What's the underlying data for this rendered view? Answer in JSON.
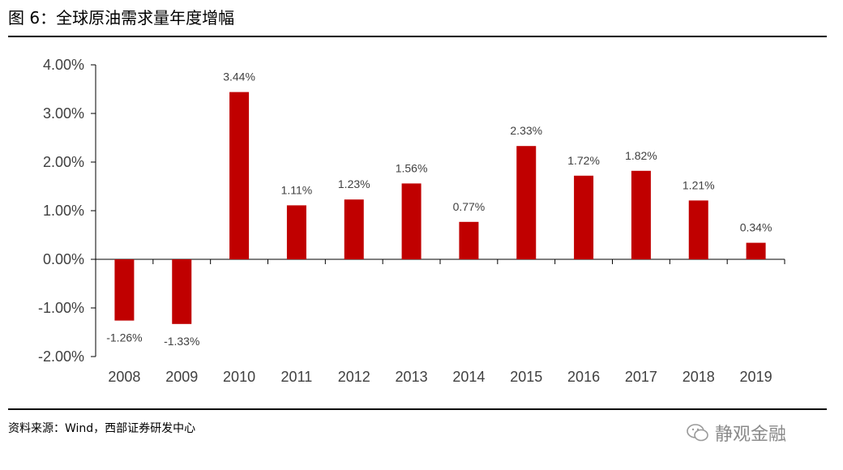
{
  "header": {
    "title": "图 6：全球原油需求量年度增幅"
  },
  "footer": {
    "source": "资料来源：Wind，西部证券研发中心"
  },
  "watermark": {
    "text": "静观金融",
    "icon": "wechat-icon"
  },
  "colors": {
    "bar": "#c00000",
    "axis": "#000000",
    "text": "#404040"
  },
  "chart_data": {
    "type": "bar",
    "title": "全球原油需求量年度增幅",
    "categories": [
      "2008",
      "2009",
      "2010",
      "2011",
      "2012",
      "2013",
      "2014",
      "2015",
      "2016",
      "2017",
      "2018",
      "2019"
    ],
    "values": [
      -1.26,
      -1.33,
      3.44,
      1.11,
      1.23,
      1.56,
      0.77,
      2.33,
      1.72,
      1.82,
      1.21,
      0.34
    ],
    "value_labels": [
      "-1.26%",
      "-1.33%",
      "3.44%",
      "1.11%",
      "1.23%",
      "1.56%",
      "0.77%",
      "2.33%",
      "1.72%",
      "1.82%",
      "1.21%",
      "0.34%"
    ],
    "ylim": [
      -2,
      4
    ],
    "yticks": [
      4,
      3,
      2,
      1,
      0,
      -1,
      -2
    ],
    "ytick_labels": [
      "4.00%",
      "3.00%",
      "2.00%",
      "1.00%",
      "0.00%",
      "-1.00%",
      "-2.00%"
    ],
    "grid": false,
    "legend": "none",
    "xlabel": "",
    "ylabel": ""
  }
}
